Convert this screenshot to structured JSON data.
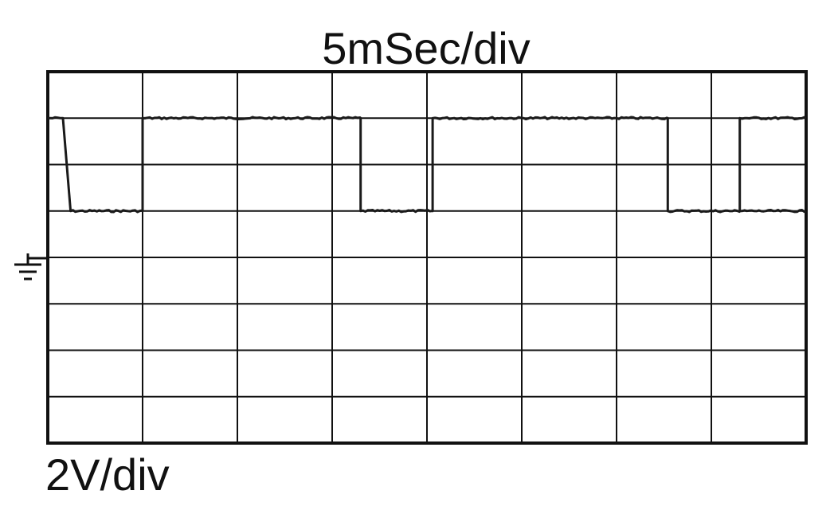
{
  "labels": {
    "time_scale": "5mSec/div",
    "volt_scale": "2V/div"
  },
  "icons": {
    "ground": "ground-icon"
  },
  "colors": {
    "trace": "#1a1a1a",
    "grid": "#111111",
    "background": "#ffffff"
  },
  "chart_data": {
    "type": "line",
    "xlabel": "5mSec/div",
    "ylabel": "2V/div",
    "divisions": {
      "x": 8,
      "y": 8
    },
    "time_per_div_ms": 5,
    "volts_per_div": 2,
    "xlim": [
      0,
      40
    ],
    "ylim": [
      -10,
      6
    ],
    "grid": true,
    "ground_level": 0,
    "series": [
      {
        "values_x": [
          0,
          0.8,
          1.2,
          5.0,
          5.0,
          16.5,
          16.5,
          20.3,
          20.3,
          32.7,
          32.7,
          36.5,
          36.5,
          40.0
        ],
        "values_y": [
          4,
          4,
          0,
          0,
          4,
          4,
          0,
          0,
          4,
          4,
          0,
          0,
          4,
          4
        ]
      },
      {
        "values_x": [
          36.5,
          40.0
        ],
        "values_y": [
          0,
          0
        ]
      }
    ]
  }
}
